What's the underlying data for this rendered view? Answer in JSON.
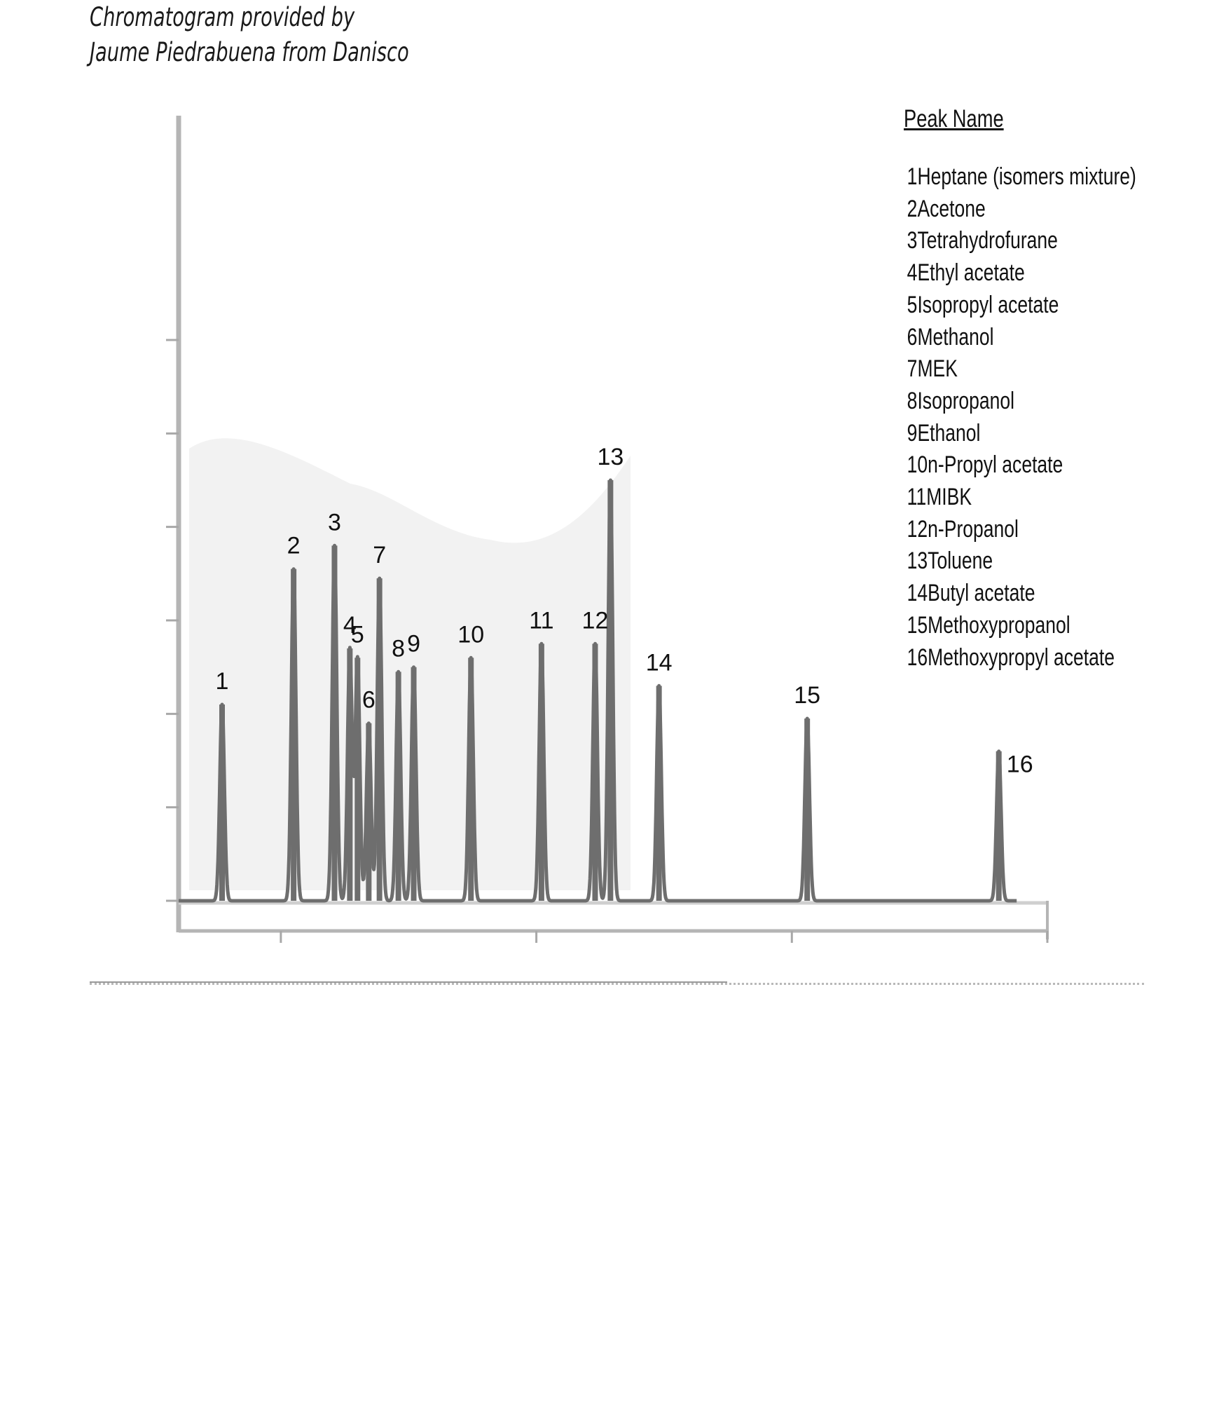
{
  "credit": {
    "line1": "Chromatogram provided by",
    "line2": "Jaume Piedrabuena from Danisco"
  },
  "chart_data": {
    "type": "line",
    "title": "",
    "xlabel": "",
    "ylabel": "",
    "xlim": [
      0,
      17
    ],
    "ylim": [
      0,
      7500
    ],
    "peaks": [
      {
        "label": "1",
        "rt": 0.85,
        "height": 2100
      },
      {
        "label": "2",
        "rt": 2.25,
        "height": 3550
      },
      {
        "label": "3",
        "rt": 3.05,
        "height": 3800
      },
      {
        "label": "4",
        "rt": 3.35,
        "height": 2700
      },
      {
        "label": "5",
        "rt": 3.5,
        "height": 2600
      },
      {
        "label": "6",
        "rt": 3.72,
        "height": 1900
      },
      {
        "label": "7",
        "rt": 3.93,
        "height": 3450
      },
      {
        "label": "8",
        "rt": 4.3,
        "height": 2450
      },
      {
        "label": "9",
        "rt": 4.6,
        "height": 2500
      },
      {
        "label": "10",
        "rt": 5.72,
        "height": 2600
      },
      {
        "label": "11",
        "rt": 7.1,
        "height": 2750
      },
      {
        "label": "12",
        "rt": 8.15,
        "height": 2750
      },
      {
        "label": "13",
        "rt": 8.45,
        "height": 4500
      },
      {
        "label": "14",
        "rt": 9.4,
        "height": 2300
      },
      {
        "label": "15",
        "rt": 12.3,
        "height": 1950
      },
      {
        "label": "16",
        "rt": 16.05,
        "height": 1600
      }
    ]
  },
  "legend": {
    "title": "Peak Name",
    "items": [
      {
        "num": "1",
        "name": "Heptane (isomers mixture)"
      },
      {
        "num": "2",
        "name": "Acetone"
      },
      {
        "num": "3",
        "name": "Tetrahydrofurane"
      },
      {
        "num": "4",
        "name": "Ethyl acetate"
      },
      {
        "num": "5",
        "name": "Isopropyl acetate"
      },
      {
        "num": "6",
        "name": "Methanol"
      },
      {
        "num": "7",
        "name": "MEK"
      },
      {
        "num": "8",
        "name": "Isopropanol"
      },
      {
        "num": "9",
        "name": "Ethanol"
      },
      {
        "num": "10",
        "name": "n-Propyl acetate"
      },
      {
        "num": "11",
        "name": "MIBK"
      },
      {
        "num": "12",
        "name": "n-Propanol"
      },
      {
        "num": "13",
        "name": "Toluene"
      },
      {
        "num": "14",
        "name": "Butyl acetate"
      },
      {
        "num": "15",
        "name": "Methoxypropanol"
      },
      {
        "num": "16",
        "name": "Methoxypropyl acetate"
      }
    ]
  },
  "colors": {
    "trace": "#6e6e6e",
    "axis": "#b5b5b5",
    "text": "#111111"
  }
}
